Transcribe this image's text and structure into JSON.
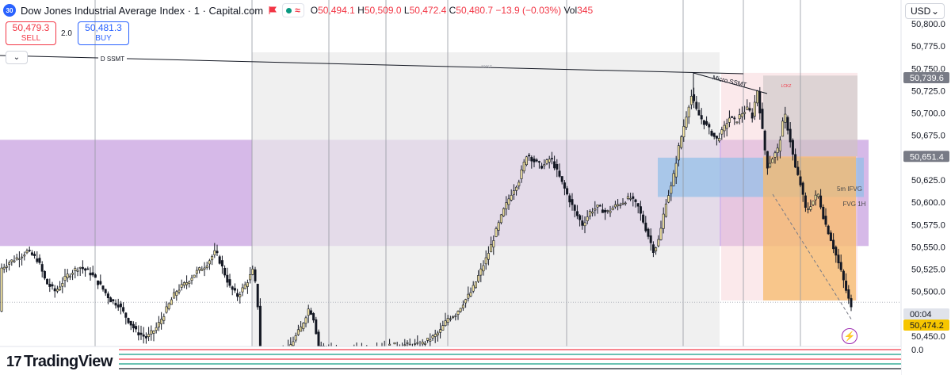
{
  "header": {
    "badge": "30",
    "symbol_title": "Dow Jones Industrial Average Index · 1 · Capital.com",
    "ohlc": {
      "o_label": "O",
      "o": "50,494.1",
      "h_label": "H",
      "h": "50,509.0",
      "l_label": "L",
      "l": "50,472.4",
      "c_label": "C",
      "c": "50,480.7",
      "change": "−13.9 (−0.03%)",
      "vol_label": "Vol",
      "vol": "345"
    }
  },
  "trade": {
    "sell_price": "50,479.3",
    "sell_label": "SELL",
    "spread": "2.0",
    "buy_price": "50,481.3",
    "buy_label": "BUY"
  },
  "currency": {
    "label": "USD",
    "caret": "⌄"
  },
  "collapse": {
    "icon": "⌄"
  },
  "branding": {
    "mark": "17",
    "name": "TradingView"
  },
  "colors": {
    "up": "#089981",
    "down": "#f23645",
    "purple_zone": "#b57fd6",
    "blue_zone": "#90bfe8",
    "orange_zone": "#f7b96b",
    "pink_zone": "#f8d3d8",
    "grey_zone": "#e9e9e9"
  },
  "chart_data": {
    "type": "candlestick",
    "ylim": [
      50437.5,
      50790
    ],
    "y_ticks": [
      "50,800.0",
      "50,775.0",
      "50,750.0",
      "50,725.0",
      "50,700.0",
      "50,675.0",
      "50,625.0",
      "50,600.0",
      "50,575.0",
      "50,550.0",
      "50,525.0",
      "50,500.0",
      "50,475.0",
      "50,450.0"
    ],
    "price_tags": [
      {
        "name": "zone-high",
        "label": "50,739.6",
        "value": 50739.6,
        "color": "#787b86"
      },
      {
        "name": "zone-mid",
        "label": "50,651.4",
        "value": 50651.4,
        "color": "#787b86"
      },
      {
        "name": "countdown",
        "label": "00:04",
        "value": 50488,
        "color": "#e0e3eb",
        "text_color": "#131722"
      },
      {
        "name": "last-price",
        "label": "50,474.2",
        "value": 50474.2,
        "color": "#f7c600",
        "text_color": "#131722"
      }
    ],
    "volume_axis_label": "0.0",
    "annotations": [
      {
        "name": "d-ssmt-label",
        "text": "D SSMT"
      },
      {
        "name": "nyxz-label",
        "text": "NYKZ"
      },
      {
        "name": "micro-ssmt-label",
        "text": "Micro SSMT"
      },
      {
        "name": "lckz-label",
        "text": "LCKZ"
      },
      {
        "name": "ifvg-label",
        "text": "5m IFVG"
      },
      {
        "name": "fvg-label",
        "text": "FVG 1H"
      }
    ],
    "zones": [
      {
        "name": "purple-zone",
        "y_top": 50670,
        "y_bottom": 50551
      },
      {
        "name": "grey-session",
        "y_top": 50768,
        "y_bottom": 50437.5
      },
      {
        "name": "pink-zone",
        "y_top": 50745,
        "y_bottom": 50490
      },
      {
        "name": "blue-zone",
        "y_top": 50650,
        "y_bottom": 50606
      },
      {
        "name": "orange-zone",
        "y_top": 50651.4,
        "y_bottom": 50490
      },
      {
        "name": "grey-overlay",
        "y_top": 50742,
        "y_bottom": 50651.4
      }
    ],
    "close_path": [
      [
        0,
        50525
      ],
      [
        10,
        50532
      ],
      [
        22,
        50538
      ],
      [
        35,
        50545
      ],
      [
        48,
        50535
      ],
      [
        58,
        50510
      ],
      [
        70,
        50500
      ],
      [
        85,
        50518
      ],
      [
        100,
        50528
      ],
      [
        115,
        50520
      ],
      [
        128,
        50505
      ],
      [
        140,
        50490
      ],
      [
        150,
        50485
      ],
      [
        160,
        50470
      ],
      [
        172,
        50455
      ],
      [
        185,
        50448
      ],
      [
        198,
        50460
      ],
      [
        210,
        50480
      ],
      [
        222,
        50500
      ],
      [
        235,
        50510
      ],
      [
        248,
        50522
      ],
      [
        260,
        50530
      ],
      [
        272,
        50545
      ],
      [
        280,
        50528
      ],
      [
        290,
        50505
      ],
      [
        300,
        50495
      ],
      [
        310,
        50508
      ],
      [
        320,
        50525
      ],
      [
        326,
        50478
      ],
      [
        327,
        50430
      ],
      [
        360,
        50430
      ],
      [
        380,
        50460
      ],
      [
        390,
        50482
      ],
      [
        398,
        50465
      ],
      [
        400,
        50440
      ],
      [
        430,
        50430
      ],
      [
        500,
        50440
      ],
      [
        530,
        50440
      ],
      [
        545,
        50448
      ],
      [
        555,
        50455
      ],
      [
        565,
        50470
      ],
      [
        575,
        50475
      ],
      [
        585,
        50488
      ],
      [
        595,
        50500
      ],
      [
        605,
        50520
      ],
      [
        615,
        50540
      ],
      [
        625,
        50565
      ],
      [
        635,
        50590
      ],
      [
        645,
        50610
      ],
      [
        655,
        50625
      ],
      [
        665,
        50655
      ],
      [
        675,
        50645
      ],
      [
        685,
        50640
      ],
      [
        695,
        50650
      ],
      [
        705,
        50630
      ],
      [
        715,
        50610
      ],
      [
        725,
        50590
      ],
      [
        735,
        50575
      ],
      [
        745,
        50590
      ],
      [
        755,
        50595
      ],
      [
        765,
        50588
      ],
      [
        775,
        50595
      ],
      [
        785,
        50600
      ],
      [
        795,
        50605
      ],
      [
        805,
        50595
      ],
      [
        815,
        50570
      ],
      [
        825,
        50545
      ],
      [
        832,
        50560
      ],
      [
        840,
        50600
      ],
      [
        848,
        50620
      ],
      [
        856,
        50660
      ],
      [
        864,
        50690
      ],
      [
        872,
        50720
      ],
      [
        880,
        50700
      ],
      [
        888,
        50690
      ],
      [
        896,
        50680
      ],
      [
        904,
        50670
      ],
      [
        912,
        50680
      ],
      [
        920,
        50695
      ],
      [
        928,
        50690
      ],
      [
        936,
        50700
      ],
      [
        944,
        50705
      ],
      [
        950,
        50695
      ],
      [
        955,
        50730
      ],
      [
        962,
        50680
      ],
      [
        968,
        50640
      ],
      [
        975,
        50650
      ],
      [
        982,
        50660
      ],
      [
        990,
        50700
      ],
      [
        997,
        50670
      ],
      [
        1003,
        50640
      ],
      [
        1010,
        50620
      ],
      [
        1017,
        50590
      ],
      [
        1025,
        50600
      ],
      [
        1032,
        50610
      ],
      [
        1040,
        50580
      ],
      [
        1048,
        50560
      ],
      [
        1055,
        50540
      ],
      [
        1062,
        50520
      ],
      [
        1068,
        50500
      ],
      [
        1075,
        50478
      ]
    ]
  }
}
